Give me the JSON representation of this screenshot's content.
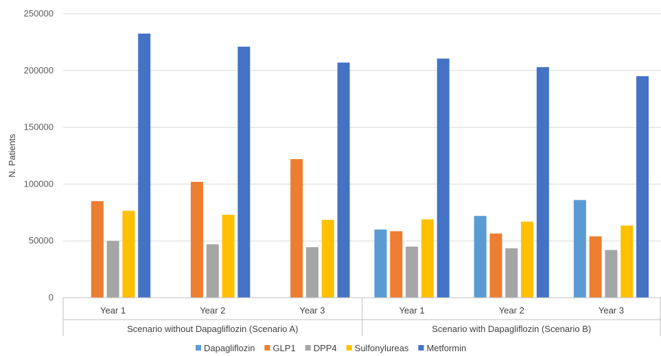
{
  "chart_data": {
    "type": "bar",
    "ylabel": "N. Patients",
    "ylim": [
      0,
      250000
    ],
    "yticks": [
      "0",
      "50000",
      "100000",
      "150000",
      "200000",
      "250000"
    ],
    "grid": true,
    "legend_position": "bottom",
    "groups": [
      {
        "label": "Scenario without Dapagliflozin (Scenario A)",
        "categories": [
          "Year 1",
          "Year 2",
          "Year 3"
        ]
      },
      {
        "label": "Scenario with Dapagliflozin (Scenario B)",
        "categories": [
          "Year 1",
          "Year 2",
          "Year 3"
        ]
      }
    ],
    "series": [
      {
        "name": "Dapagliflozin",
        "color": "#5B9BD5",
        "values": [
          0,
          0,
          0,
          60000,
          72000,
          86000
        ]
      },
      {
        "name": "GLP1",
        "color": "#ED7D31",
        "values": [
          85000,
          102000,
          122000,
          58500,
          56500,
          54000
        ]
      },
      {
        "name": "DPP4",
        "color": "#A5A5A5",
        "values": [
          50000,
          47000,
          44500,
          45000,
          43500,
          42000
        ]
      },
      {
        "name": "Sulfonylureas",
        "color": "#FFC000",
        "values": [
          76500,
          73000,
          68500,
          69000,
          67000,
          63500
        ]
      },
      {
        "name": "Metformin",
        "color": "#4472C4",
        "values": [
          232500,
          221000,
          207000,
          210500,
          203000,
          195000
        ]
      }
    ]
  }
}
